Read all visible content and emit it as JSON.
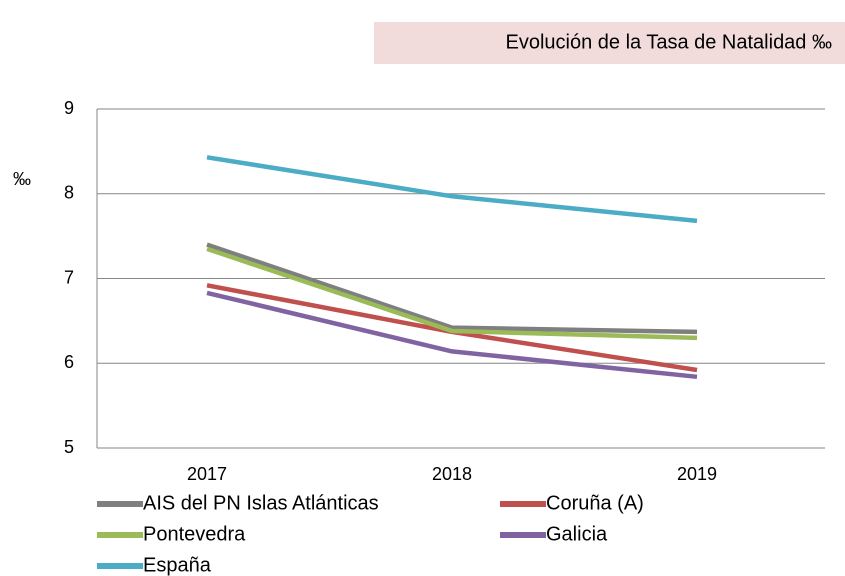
{
  "chart_data": {
    "type": "line",
    "title": "Evolución de la Tasa de Natalidad ‰",
    "y_label": "‰",
    "categories": [
      "2017",
      "2018",
      "2019"
    ],
    "series": [
      {
        "name": "AIS del PN Islas Atlánticas",
        "color": "#7f7f7f",
        "values": [
          7.4,
          6.42,
          6.37
        ]
      },
      {
        "name": "Coruña (A)",
        "color": "#c0504d",
        "values": [
          6.92,
          6.37,
          5.92
        ]
      },
      {
        "name": "Pontevedra",
        "color": "#9bbb59",
        "values": [
          7.35,
          6.38,
          6.3
        ]
      },
      {
        "name": "Galicia",
        "color": "#8064a2",
        "values": [
          6.83,
          6.14,
          5.84
        ]
      },
      {
        "name": "España",
        "color": "#4bacc6",
        "values": [
          8.43,
          7.97,
          7.68
        ]
      }
    ],
    "ylim": [
      5,
      9
    ],
    "yticks": [
      5,
      6,
      7,
      8,
      9
    ],
    "grid": true
  }
}
